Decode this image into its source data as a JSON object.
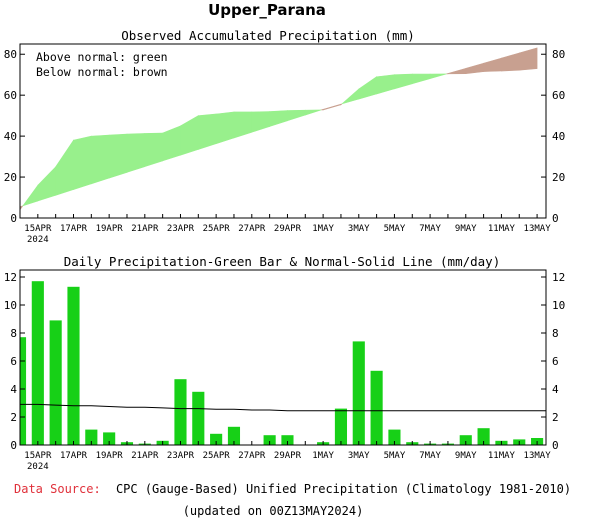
{
  "title": "Upper_Parana",
  "source": {
    "label": "Data Source:",
    "text": "CPC (Gauge-Based) Unified Precipitation (Climatology 1981-2010)",
    "updated": "(updated on 00Z13MAY2024)"
  },
  "colors": {
    "above_normal": "#98f08c",
    "below_normal": "#c8a090",
    "bar": "#17d017",
    "normal_line": "#000000",
    "source_label": "#e0303a"
  },
  "x_tick_labels": [
    "15APR",
    "17APR",
    "19APR",
    "21APR",
    "23APR",
    "25APR",
    "27APR",
    "29APR",
    "1MAY",
    "3MAY",
    "5MAY",
    "7MAY",
    "9MAY",
    "11MAY",
    "13MAY"
  ],
  "x_year_label": "2024",
  "chart_data": [
    {
      "type": "area",
      "title": "Observed Accumulated Precipitation (mm)",
      "legend": [
        "Above normal: green",
        "Below normal: brown"
      ],
      "legend_position": "top-left",
      "ylim": [
        0,
        85
      ],
      "yticks": [
        0,
        20,
        40,
        60,
        80
      ],
      "x": [
        "14APR",
        "15APR",
        "16APR",
        "17APR",
        "18APR",
        "19APR",
        "20APR",
        "21APR",
        "22APR",
        "23APR",
        "24APR",
        "25APR",
        "26APR",
        "27APR",
        "28APR",
        "29APR",
        "30APR",
        "1MAY",
        "2MAY",
        "3MAY",
        "4MAY",
        "5MAY",
        "6MAY",
        "7MAY",
        "8MAY",
        "9MAY",
        "10MAY",
        "11MAY",
        "12MAY",
        "13MAY"
      ],
      "series": [
        {
          "name": "Observed",
          "values": [
            4,
            16,
            25,
            38,
            40,
            40.5,
            41,
            41.3,
            41.5,
            45,
            50,
            50.8,
            51.8,
            51.8,
            52,
            52.5,
            52.7,
            52.8,
            55.3,
            63,
            69,
            70,
            70.3,
            70.3,
            70.4,
            70.5,
            71.5,
            71.8,
            72.2,
            73
          ]
        },
        {
          "name": "Normal",
          "values": [
            5.5,
            8.3,
            11.1,
            13.9,
            16.7,
            19.5,
            22.3,
            25.1,
            27.9,
            30.7,
            33.5,
            36.3,
            39.1,
            41.9,
            44.7,
            47.5,
            50.3,
            53.1,
            55.6,
            58.1,
            60.6,
            63.1,
            65.6,
            68.1,
            70.6,
            73.1,
            75.6,
            78.1,
            80.6,
            83.1
          ]
        }
      ]
    },
    {
      "type": "bar",
      "title": "Daily Precipitation-Green Bar & Normal-Solid Line (mm/day)",
      "ylim": [
        0,
        12.5
      ],
      "yticks": [
        0,
        2,
        4,
        6,
        8,
        10,
        12
      ],
      "x": [
        "14APR",
        "15APR",
        "16APR",
        "17APR",
        "18APR",
        "19APR",
        "20APR",
        "21APR",
        "22APR",
        "23APR",
        "24APR",
        "25APR",
        "26APR",
        "27APR",
        "28APR",
        "29APR",
        "30APR",
        "1MAY",
        "2MAY",
        "3MAY",
        "4MAY",
        "5MAY",
        "6MAY",
        "7MAY",
        "8MAY",
        "9MAY",
        "10MAY",
        "11MAY",
        "12MAY",
        "13MAY"
      ],
      "series": [
        {
          "name": "Daily",
          "values": [
            7.7,
            11.7,
            8.9,
            11.3,
            1.1,
            0.9,
            0.2,
            0.1,
            0.3,
            4.7,
            3.8,
            0.8,
            1.3,
            0.0,
            0.7,
            0.7,
            0.0,
            0.2,
            2.6,
            7.4,
            5.3,
            1.1,
            0.2,
            0.1,
            0.1,
            0.7,
            1.2,
            0.3,
            0.4,
            0.5
          ]
        },
        {
          "name": "Normal",
          "values": [
            2.9,
            2.9,
            2.85,
            2.8,
            2.8,
            2.75,
            2.7,
            2.7,
            2.65,
            2.6,
            2.6,
            2.55,
            2.55,
            2.5,
            2.5,
            2.45,
            2.45,
            2.45,
            2.45,
            2.45,
            2.45,
            2.45,
            2.45,
            2.45,
            2.45,
            2.45,
            2.45,
            2.45,
            2.45,
            2.45
          ]
        }
      ]
    }
  ]
}
